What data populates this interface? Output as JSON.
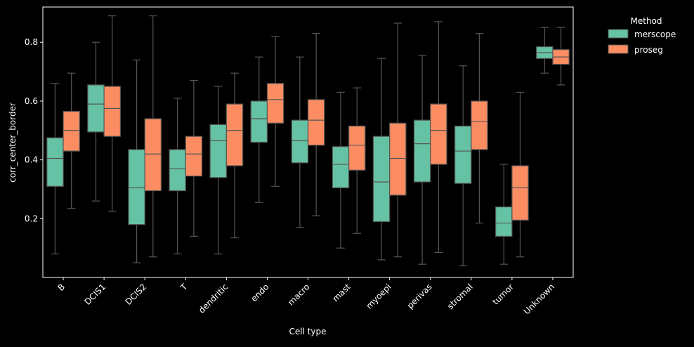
{
  "chart_data": {
    "type": "boxplot",
    "xlabel": "Cell type",
    "ylabel": "corr_center_border",
    "ylim": [
      0.0,
      0.92
    ],
    "yticks": [
      "0.2",
      "0.4",
      "0.6",
      "0.8"
    ],
    "categories": [
      "B",
      "DCIS1",
      "DCIS2",
      "T",
      "dendritic",
      "endo",
      "macro",
      "mast",
      "myoepi",
      "perivas",
      "stromal",
      "tumor",
      "Unknown"
    ],
    "legend": {
      "title": "Method",
      "entries": [
        "merscope",
        "proseg"
      ],
      "placement": "outside-right"
    },
    "series": [
      {
        "name": "merscope",
        "color": "#66c2a5",
        "boxes": [
          {
            "whislo": 0.08,
            "q1": 0.31,
            "med": 0.405,
            "q3": 0.475,
            "whishi": 0.66
          },
          {
            "whislo": 0.26,
            "q1": 0.495,
            "med": 0.59,
            "q3": 0.655,
            "whishi": 0.8
          },
          {
            "whislo": 0.05,
            "q1": 0.18,
            "med": 0.305,
            "q3": 0.435,
            "whishi": 0.74
          },
          {
            "whislo": 0.08,
            "q1": 0.295,
            "med": 0.37,
            "q3": 0.435,
            "whishi": 0.61
          },
          {
            "whislo": 0.08,
            "q1": 0.34,
            "med": 0.465,
            "q3": 0.52,
            "whishi": 0.65
          },
          {
            "whislo": 0.255,
            "q1": 0.46,
            "med": 0.54,
            "q3": 0.6,
            "whishi": 0.75
          },
          {
            "whislo": 0.17,
            "q1": 0.39,
            "med": 0.465,
            "q3": 0.535,
            "whishi": 0.75
          },
          {
            "whislo": 0.1,
            "q1": 0.305,
            "med": 0.385,
            "q3": 0.445,
            "whishi": 0.63
          },
          {
            "whislo": 0.06,
            "q1": 0.19,
            "med": 0.325,
            "q3": 0.48,
            "whishi": 0.745
          },
          {
            "whislo": 0.045,
            "q1": 0.325,
            "med": 0.455,
            "q3": 0.535,
            "whishi": 0.755
          },
          {
            "whislo": 0.04,
            "q1": 0.32,
            "med": 0.43,
            "q3": 0.515,
            "whishi": 0.72
          },
          {
            "whislo": 0.045,
            "q1": 0.14,
            "med": 0.185,
            "q3": 0.24,
            "whishi": 0.385
          },
          {
            "whislo": 0.695,
            "q1": 0.745,
            "med": 0.765,
            "q3": 0.785,
            "whishi": 0.85
          }
        ]
      },
      {
        "name": "proseg",
        "color": "#fc8d62",
        "boxes": [
          {
            "whislo": 0.235,
            "q1": 0.43,
            "med": 0.5,
            "q3": 0.565,
            "whishi": 0.695
          },
          {
            "whislo": 0.225,
            "q1": 0.48,
            "med": 0.575,
            "q3": 0.65,
            "whishi": 0.89
          },
          {
            "whislo": 0.07,
            "q1": 0.295,
            "med": 0.42,
            "q3": 0.54,
            "whishi": 0.89
          },
          {
            "whislo": 0.14,
            "q1": 0.345,
            "med": 0.42,
            "q3": 0.48,
            "whishi": 0.67
          },
          {
            "whislo": 0.135,
            "q1": 0.38,
            "med": 0.5,
            "q3": 0.59,
            "whishi": 0.695
          },
          {
            "whislo": 0.31,
            "q1": 0.525,
            "med": 0.605,
            "q3": 0.66,
            "whishi": 0.82
          },
          {
            "whislo": 0.21,
            "q1": 0.45,
            "med": 0.535,
            "q3": 0.605,
            "whishi": 0.83
          },
          {
            "whislo": 0.15,
            "q1": 0.365,
            "med": 0.45,
            "q3": 0.515,
            "whishi": 0.645
          },
          {
            "whislo": 0.07,
            "q1": 0.28,
            "med": 0.405,
            "q3": 0.525,
            "whishi": 0.865
          },
          {
            "whislo": 0.085,
            "q1": 0.385,
            "med": 0.5,
            "q3": 0.59,
            "whishi": 0.87
          },
          {
            "whislo": 0.185,
            "q1": 0.435,
            "med": 0.53,
            "q3": 0.6,
            "whishi": 0.83
          },
          {
            "whislo": 0.07,
            "q1": 0.195,
            "med": 0.305,
            "q3": 0.38,
            "whishi": 0.63
          },
          {
            "whislo": 0.655,
            "q1": 0.725,
            "med": 0.75,
            "q3": 0.775,
            "whishi": 0.85
          }
        ]
      }
    ]
  }
}
